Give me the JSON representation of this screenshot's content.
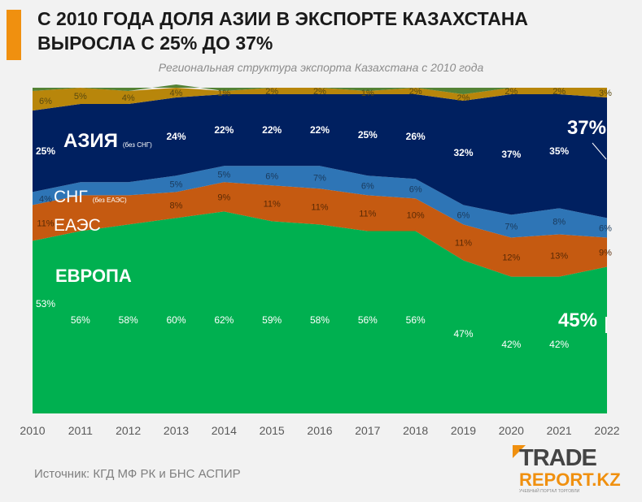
{
  "header": {
    "title_line1": "С 2010 ГОДА ДОЛЯ АЗИИ В ЭКСПОРТЕ КАЗАХСТАНА",
    "title_line2": "ВЫРОСЛА С 25% ДО 37%",
    "subtitle": "Региональная структура экспорта Казахстана с 2010 года"
  },
  "source": "Источник: КГД МФ РК и БНС АСПИР",
  "logo": {
    "line1": "TRADE",
    "line2": "REPORT.KZ",
    "tagline": "УЧЕБНЫЙ ПОРТАЛ ТОРГОВЛИ"
  },
  "colors": {
    "europe": "#00b050",
    "eaes": "#c55a11",
    "sng": "#2e75b6",
    "asia": "#002060",
    "other": "#b8860b",
    "top": "#548235",
    "accent": "#f0900f"
  },
  "chart_data": {
    "type": "area",
    "stacked": true,
    "x": [
      "2010",
      "2011",
      "2012",
      "2013",
      "2014",
      "2015",
      "2016",
      "2017",
      "2018",
      "2019",
      "2020",
      "2021",
      "2022"
    ],
    "ylim": [
      0,
      100
    ],
    "grid": false,
    "series": [
      {
        "key": "europe",
        "name": "ЕВРОПА",
        "values": [
          53,
          56,
          58,
          60,
          62,
          59,
          58,
          56,
          56,
          47,
          42,
          42,
          45
        ],
        "labels": [
          "53%",
          "56%",
          "58%",
          "60%",
          "62%",
          "59%",
          "58%",
          "56%",
          "56%",
          "47%",
          "42%",
          "42%",
          "45%"
        ]
      },
      {
        "key": "eaes",
        "name": "ЕАЭС",
        "values": [
          11,
          11,
          9,
          8,
          9,
          11,
          11,
          11,
          10,
          11,
          12,
          13,
          9
        ],
        "labels": [
          "11%",
          "",
          "",
          "8%",
          "9%",
          "11%",
          "11%",
          "11%",
          "10%",
          "11%",
          "12%",
          "13%",
          "9%"
        ]
      },
      {
        "key": "sng",
        "name": "СНГ",
        "note": "(без ЕАЭС)",
        "values": [
          4,
          4,
          4,
          5,
          5,
          6,
          7,
          6,
          6,
          6,
          7,
          8,
          6
        ],
        "labels": [
          "4%",
          "",
          "",
          "5%",
          "5%",
          "6%",
          "7%",
          "6%",
          "6%",
          "6%",
          "7%",
          "8%",
          "6%"
        ]
      },
      {
        "key": "asia",
        "name": "АЗИЯ",
        "note": "(без СНГ)",
        "values": [
          25,
          24,
          24,
          24,
          22,
          22,
          22,
          25,
          26,
          32,
          37,
          35,
          37
        ],
        "labels": [
          "25%",
          "",
          "",
          "24%",
          "22%",
          "22%",
          "22%",
          "25%",
          "26%",
          "32%",
          "37%",
          "35%",
          "37%"
        ]
      },
      {
        "key": "other",
        "name": "",
        "values": [
          6,
          5,
          4,
          4,
          1,
          2,
          2,
          1,
          2,
          2,
          2,
          2,
          3
        ],
        "labels": [
          "6%",
          "5%",
          "4%",
          "4%",
          "1%",
          "2%",
          "2%",
          "1%",
          "2%",
          "2%",
          "2%",
          "2%",
          "3%"
        ]
      },
      {
        "key": "top",
        "name": "",
        "values": [
          1,
          0,
          1,
          0,
          1,
          0,
          0,
          1,
          0,
          2,
          0,
          0,
          0
        ],
        "labels": []
      }
    ],
    "callouts": {
      "europe_end": "45%",
      "asia_end": "37%"
    }
  }
}
